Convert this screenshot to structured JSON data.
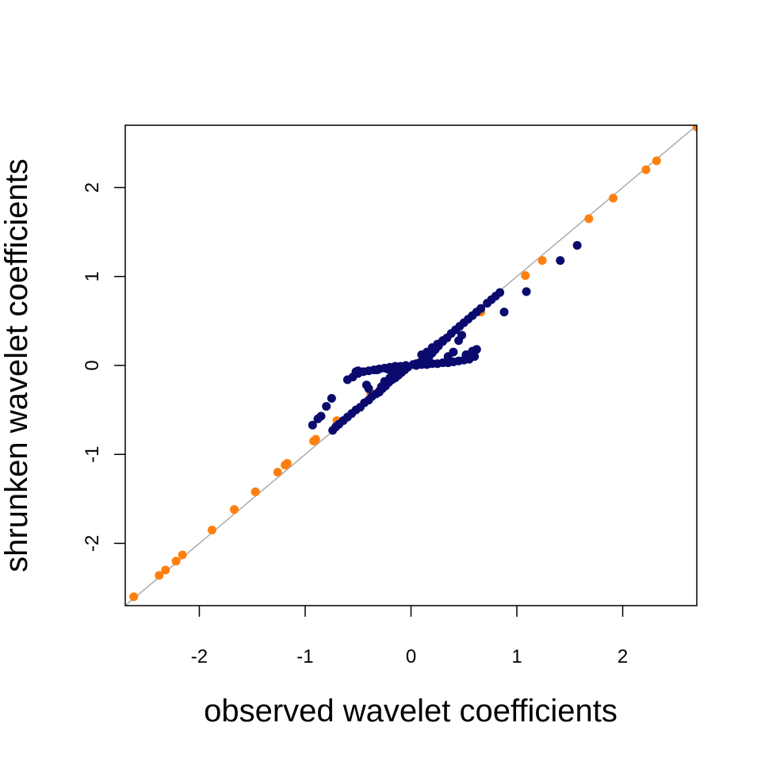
{
  "chart_data": {
    "type": "scatter",
    "title": "",
    "xlabel": "observed wavelet coefficients",
    "ylabel": "shrunken wavelet coefficients",
    "xlim": [
      -2.7,
      2.7
    ],
    "ylim": [
      -2.7,
      2.7
    ],
    "xticks": [
      -2,
      -1,
      0,
      1,
      2
    ],
    "yticks": [
      -2,
      -1,
      0,
      1,
      2
    ],
    "xtick_labels": [
      "-2",
      "-1",
      "0",
      "1",
      "2"
    ],
    "ytick_labels": [
      "-2",
      "-1",
      "0",
      "1",
      "2"
    ],
    "grid": false,
    "reference_line": {
      "slope": 1,
      "intercept": 0,
      "color": "#aaaaaa"
    },
    "series": [
      {
        "color": "#ff7f0e",
        "points": [
          [
            -2.62,
            -2.6
          ],
          [
            -2.38,
            -2.36
          ],
          [
            -2.32,
            -2.3
          ],
          [
            -2.22,
            -2.2
          ],
          [
            -2.16,
            -2.13
          ],
          [
            -1.88,
            -1.85
          ],
          [
            -1.67,
            -1.62
          ],
          [
            -1.47,
            -1.42
          ],
          [
            -1.26,
            -1.2
          ],
          [
            -1.19,
            -1.12
          ],
          [
            -1.17,
            -1.1
          ],
          [
            -0.92,
            -0.85
          ],
          [
            -0.9,
            -0.83
          ],
          [
            -0.7,
            -0.62
          ],
          [
            -0.38,
            -0.32
          ],
          [
            0.66,
            0.6
          ],
          [
            1.08,
            1.01
          ],
          [
            1.24,
            1.18
          ],
          [
            1.68,
            1.65
          ],
          [
            1.91,
            1.88
          ],
          [
            2.22,
            2.2
          ],
          [
            2.32,
            2.3
          ],
          [
            2.7,
            2.68
          ]
        ]
      },
      {
        "color": "#0a0a6e",
        "points": [
          [
            -0.93,
            -0.67
          ],
          [
            -0.88,
            -0.6
          ],
          [
            -0.85,
            -0.57
          ],
          [
            -0.8,
            -0.46
          ],
          [
            -0.75,
            -0.37
          ],
          [
            -0.74,
            -0.73
          ],
          [
            -0.71,
            -0.69
          ],
          [
            -0.68,
            -0.66
          ],
          [
            -0.64,
            -0.62
          ],
          [
            -0.6,
            -0.58
          ],
          [
            -0.56,
            -0.54
          ],
          [
            -0.52,
            -0.5
          ],
          [
            -0.48,
            -0.47
          ],
          [
            -0.44,
            -0.42
          ],
          [
            -0.4,
            -0.39
          ],
          [
            -0.37,
            -0.35
          ],
          [
            -0.33,
            -0.32
          ],
          [
            -0.3,
            -0.29
          ],
          [
            -0.27,
            -0.26
          ],
          [
            -0.24,
            -0.23
          ],
          [
            -0.21,
            -0.19
          ],
          [
            -0.18,
            -0.16
          ],
          [
            -0.15,
            -0.14
          ],
          [
            -0.12,
            -0.11
          ],
          [
            -0.09,
            -0.08
          ],
          [
            -0.06,
            -0.05
          ],
          [
            -0.03,
            -0.02
          ],
          [
            -0.6,
            -0.16
          ],
          [
            -0.55,
            -0.13
          ],
          [
            -0.5,
            -0.09
          ],
          [
            -0.45,
            -0.07
          ],
          [
            -0.4,
            -0.06
          ],
          [
            -0.35,
            -0.05
          ],
          [
            -0.3,
            -0.04
          ],
          [
            -0.25,
            -0.03
          ],
          [
            -0.2,
            -0.02
          ],
          [
            -0.15,
            -0.01
          ],
          [
            -0.1,
            -0.01
          ],
          [
            -0.05,
            0.0
          ],
          [
            -0.42,
            -0.22
          ],
          [
            -0.4,
            -0.26
          ],
          [
            -0.3,
            -0.3
          ],
          [
            -0.28,
            -0.24
          ],
          [
            -0.25,
            -0.18
          ],
          [
            -0.2,
            -0.14
          ],
          [
            -0.18,
            -0.1
          ],
          [
            -0.15,
            -0.09
          ],
          [
            -0.12,
            -0.06
          ],
          [
            -0.08,
            -0.04
          ],
          [
            -0.52,
            -0.07
          ],
          [
            -0.5,
            -0.06
          ],
          [
            -0.32,
            -0.05
          ],
          [
            -0.22,
            -0.04
          ],
          [
            0.02,
            0.01
          ],
          [
            0.05,
            0.02
          ],
          [
            0.08,
            0.03
          ],
          [
            0.11,
            0.05
          ],
          [
            0.14,
            0.07
          ],
          [
            0.17,
            0.1
          ],
          [
            0.2,
            0.14
          ],
          [
            0.23,
            0.18
          ],
          [
            0.26,
            0.22
          ],
          [
            0.3,
            0.27
          ],
          [
            0.34,
            0.31
          ],
          [
            0.38,
            0.36
          ],
          [
            0.42,
            0.4
          ],
          [
            0.46,
            0.44
          ],
          [
            0.5,
            0.48
          ],
          [
            0.54,
            0.52
          ],
          [
            0.58,
            0.56
          ],
          [
            0.62,
            0.6
          ],
          [
            0.66,
            0.64
          ],
          [
            0.72,
            0.7
          ],
          [
            0.76,
            0.74
          ],
          [
            0.8,
            0.78
          ],
          [
            0.84,
            0.82
          ],
          [
            0.88,
            0.6
          ],
          [
            1.09,
            0.83
          ],
          [
            1.41,
            1.18
          ],
          [
            1.57,
            1.35
          ],
          [
            0.05,
            0.0
          ],
          [
            0.1,
            0.01
          ],
          [
            0.15,
            0.01
          ],
          [
            0.2,
            0.02
          ],
          [
            0.25,
            0.02
          ],
          [
            0.3,
            0.03
          ],
          [
            0.35,
            0.03
          ],
          [
            0.4,
            0.04
          ],
          [
            0.45,
            0.05
          ],
          [
            0.5,
            0.06
          ],
          [
            0.55,
            0.07
          ],
          [
            0.6,
            0.1
          ],
          [
            0.1,
            0.12
          ],
          [
            0.15,
            0.15
          ],
          [
            0.2,
            0.2
          ],
          [
            0.25,
            0.24
          ],
          [
            0.3,
            0.28
          ],
          [
            0.35,
            0.1
          ],
          [
            0.4,
            0.15
          ],
          [
            0.45,
            0.28
          ],
          [
            0.48,
            0.34
          ],
          [
            0.58,
            0.16
          ],
          [
            0.62,
            0.18
          ],
          [
            0.52,
            0.12
          ]
        ]
      }
    ]
  }
}
